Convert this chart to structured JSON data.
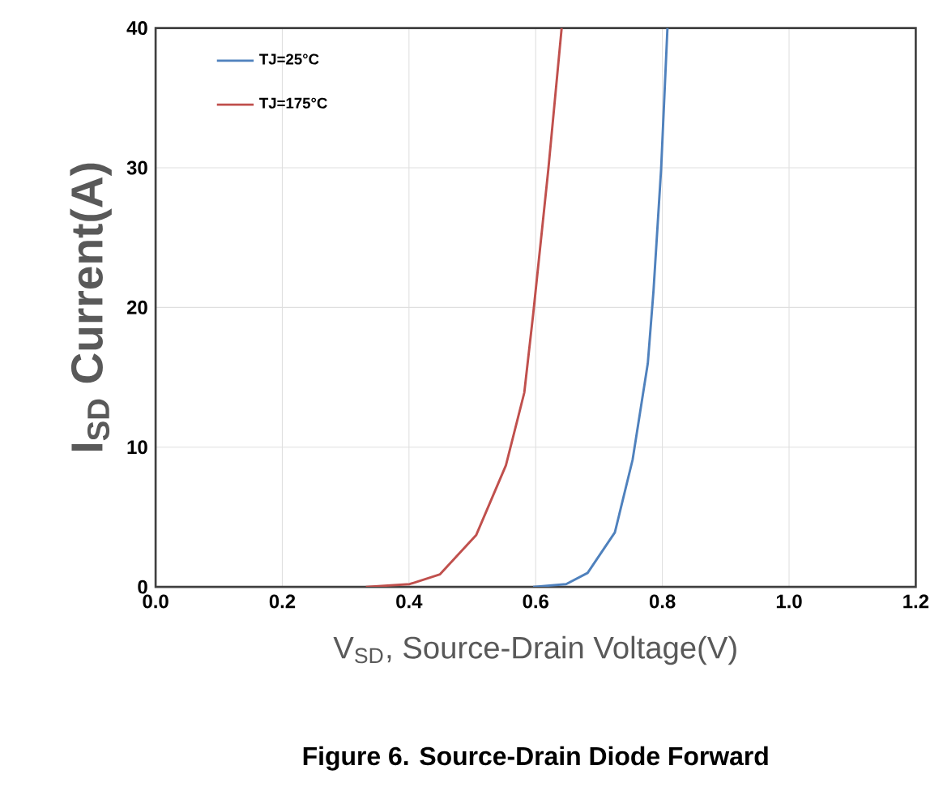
{
  "chart_data": {
    "type": "line",
    "title": "Figure 6. Source-Drain Diode Forward",
    "xlabel": "V$_{SD}$, Source-Drain Voltage(V)",
    "ylabel": "I$_{SD}$ Current(A)",
    "xlim": [
      0,
      1.2
    ],
    "ylim": [
      0,
      40
    ],
    "xticks": [
      {
        "value": 0,
        "label": "0.0"
      },
      {
        "value": 0.2,
        "label": "0.2"
      },
      {
        "value": 0.4,
        "label": "0.4"
      },
      {
        "value": 0.6,
        "label": "0.6"
      },
      {
        "value": 0.8,
        "label": "0.8"
      },
      {
        "value": 1.0,
        "label": "1.0"
      },
      {
        "value": 1.2,
        "label": "1.2"
      }
    ],
    "yticks": [
      0,
      10,
      20,
      30,
      40
    ],
    "grid": true,
    "legend": "top left",
    "marker": "none",
    "line_style": "solid",
    "series": [
      {
        "name": "TJ=25°C",
        "color": "#4f81bd",
        "x": [
          0.596,
          0.648,
          0.682,
          0.725,
          0.753,
          0.777,
          0.786,
          0.798,
          0.808
        ],
        "values": [
          0,
          0.2,
          1,
          3.9,
          9.1,
          16,
          21.2,
          29.9,
          40
        ]
      },
      {
        "name": "TJ=175°C",
        "color": "#c0504d",
        "x": [
          0.332,
          0.401,
          0.449,
          0.506,
          0.553,
          0.582,
          0.596,
          0.62,
          0.641
        ],
        "values": [
          0,
          0.2,
          0.9,
          3.7,
          8.7,
          13.9,
          19.5,
          29.9,
          40
        ]
      }
    ]
  }
}
